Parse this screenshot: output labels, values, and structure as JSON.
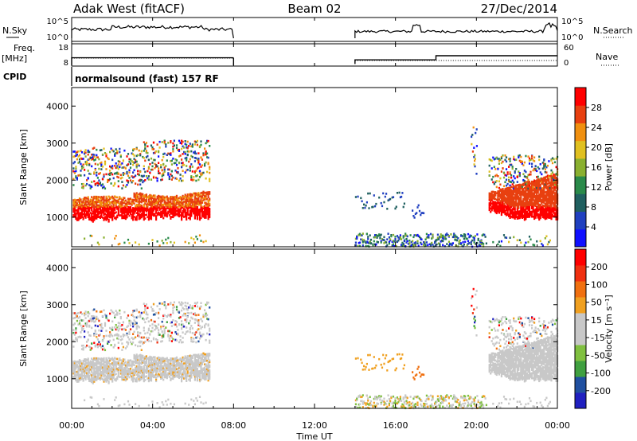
{
  "header": {
    "radar": "Adak West (fitACF)",
    "beam": "Beam 02",
    "date": "27/Dec/2014"
  },
  "colors": {
    "panel_stroke": "#000000",
    "cpid_line": "#000000",
    "power_scale": [
      "#1010ff",
      "#2040c0",
      "#206060",
      "#2a8a4a",
      "#8ab030",
      "#e0c020",
      "#f09010",
      "#e84010",
      "#ff0000"
    ],
    "velocity_scale": [
      "#ff0000",
      "#f03010",
      "#f07010",
      "#f0a020",
      "#c8c8c8",
      "#c8c8c8",
      "#80c040",
      "#40a040",
      "#2050a0",
      "#2020c0"
    ]
  },
  "chart_data": {
    "type": "heatmap",
    "x_axis": {
      "label": "Time UT",
      "range_hours": [
        0,
        24
      ],
      "ticks": [
        "00:00",
        "04:00",
        "08:00",
        "12:00",
        "16:00",
        "20:00",
        "00:00"
      ]
    },
    "small_panels": {
      "nsky": {
        "left_label": "N.Sky",
        "right_label": "N.Search",
        "left_ticks": [
          "10^5",
          "10^0"
        ],
        "right_ticks": [
          "10^5",
          "10^0"
        ]
      },
      "freq": {
        "left_label": "Freq.",
        "left_unit": "[MHz]",
        "right_label": "Nave",
        "left_ticks": [
          "18",
          "8"
        ],
        "right_ticks": [
          "60",
          "0"
        ],
        "freq_mhz": [
          {
            "t0": 0.0,
            "t1": 8.0,
            "v": 12.0
          },
          {
            "t0": 14.0,
            "t1": 18.0,
            "v": 11.0
          },
          {
            "t0": 18.0,
            "t1": 24.0,
            "v": 13.0
          }
        ]
      },
      "cpid": {
        "label": "CPID",
        "text": "normalsound (fast) 157 RF"
      }
    },
    "panels": [
      {
        "name": "power",
        "ylabel": "Slant Range [km]",
        "yrange_km": [
          200,
          4500
        ],
        "yticks": [
          "1000",
          "2000",
          "3000",
          "4000"
        ],
        "colorbar_label": "Power [dB]",
        "colorbar_ticks": [
          "4",
          "8",
          "12",
          "16",
          "20",
          "24",
          "28"
        ]
      },
      {
        "name": "velocity",
        "ylabel": "Slant Range [km]",
        "yrange_km": [
          200,
          4500
        ],
        "yticks": [
          "1000",
          "2000",
          "3000",
          "4000"
        ],
        "colorbar_label": "Velocity [m s⁻¹]",
        "colorbar_ticks": [
          "200",
          "100",
          "50",
          "15",
          "-15",
          "-50",
          "-100",
          "-200"
        ]
      }
    ]
  }
}
